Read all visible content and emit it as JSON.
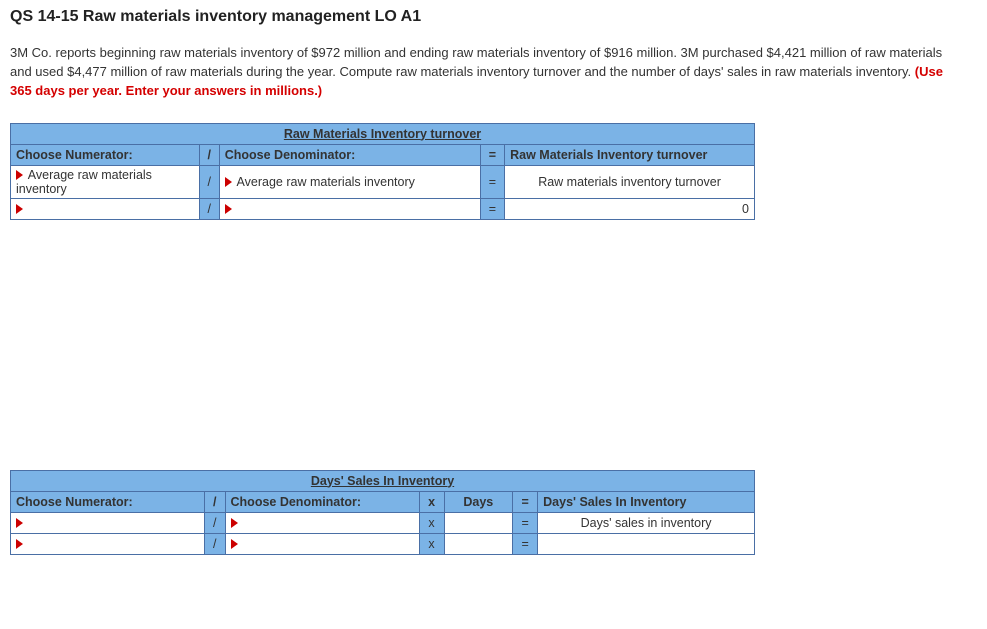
{
  "heading": "QS 14-15 Raw materials inventory management LO A1",
  "problem": {
    "text": "3M Co. reports beginning raw materials inventory of $972 million and ending raw materials inventory of $916 million. 3M purchased $4,421 million of raw materials and used $4,477 million of raw materials during the year. Compute raw materials inventory turnover and the number of days' sales in raw materials inventory. ",
    "hint": "(Use 365 days per year. Enter your answers in millions.)"
  },
  "table1": {
    "title": "Raw Materials Inventory turnover",
    "headers": {
      "numerator": "Choose Numerator:",
      "denominator": "Choose Denominator:",
      "result": "Raw Materials Inventory turnover"
    },
    "row1": {
      "numerator": "Average raw materials inventory",
      "denominator": "Average raw materials inventory",
      "result": "Raw materials inventory turnover"
    },
    "row2": {
      "numerator": "",
      "denominator": "",
      "result": "0"
    },
    "ops": {
      "slash": "/",
      "eq": "="
    }
  },
  "table2": {
    "title": "Days' Sales In Inventory",
    "headers": {
      "numerator": "Choose Numerator:",
      "denominator": "Choose Denominator:",
      "days": "Days",
      "result": "Days' Sales In Inventory"
    },
    "row1": {
      "numerator": "",
      "denominator": "",
      "days": "",
      "result": "Days' sales in inventory"
    },
    "row2": {
      "numerator": "",
      "denominator": "",
      "days": "",
      "result": ""
    },
    "ops": {
      "slash": "/",
      "x": "x",
      "eq": "="
    }
  },
  "colors": {
    "header_bg": "#7bb3e6",
    "border": "#4a6fa5",
    "hint": "#d40000",
    "marker": "#c00"
  }
}
